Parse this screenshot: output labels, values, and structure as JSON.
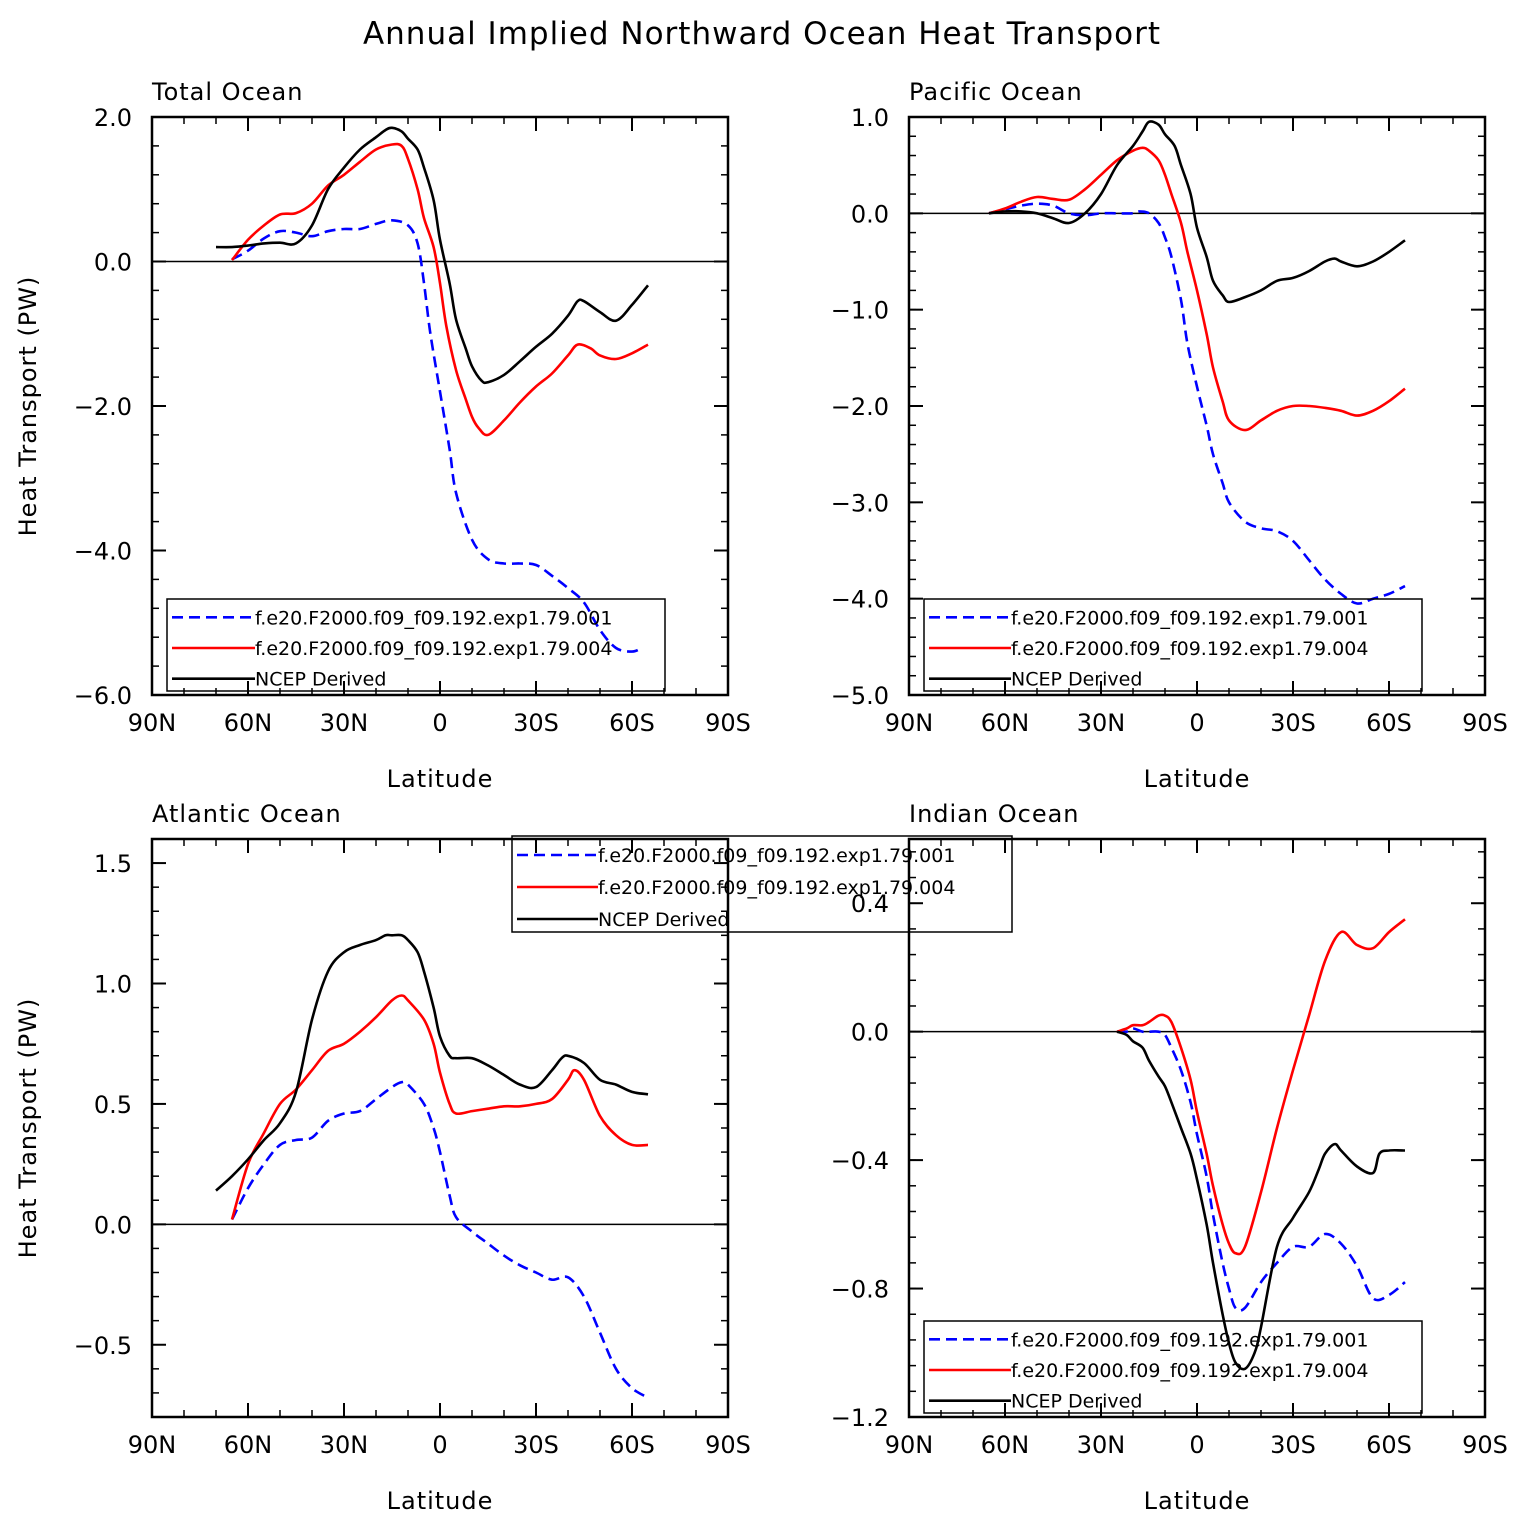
{
  "title": "Annual Implied Northward Ocean Heat Transport",
  "colors": {
    "exp001": "#0000ff",
    "exp004": "#ff0000",
    "ncep": "#000000"
  },
  "chart_data": [
    {
      "type": "line",
      "title": "Total Ocean",
      "xlabel": "Latitude",
      "ylabel": "Heat Transport (PW)",
      "xlim": [
        90,
        -90
      ],
      "ylim": [
        -6.0,
        2.0
      ],
      "xticks": [
        90,
        60,
        30,
        0,
        -30,
        -60,
        -90
      ],
      "xtick_labels": [
        "90N",
        "60N",
        "30N",
        "0",
        "30S",
        "60S",
        "90S"
      ],
      "yticks": [
        2.0,
        0.0,
        -2.0,
        -4.0,
        -6.0
      ],
      "ytick_labels": [
        "2.0",
        "0.0",
        "−2.0",
        "−4.0",
        "−6.0"
      ],
      "zero_line": true,
      "legend_position": "bottom-left",
      "series": [
        {
          "name": "f.e20.F2000.f09_f09.192.exp1.79.001",
          "style": "dashed",
          "color": "#0000ff",
          "x": [
            65,
            60,
            55,
            50,
            45,
            40,
            35,
            30,
            25,
            20,
            15,
            10,
            7,
            5,
            3,
            0,
            -3,
            -5,
            -10,
            -15,
            -20,
            -25,
            -30,
            -35,
            -40,
            -45,
            -50,
            -55,
            -60,
            -63
          ],
          "y": [
            0.03,
            0.15,
            0.32,
            0.42,
            0.4,
            0.35,
            0.42,
            0.45,
            0.45,
            0.52,
            0.57,
            0.5,
            0.25,
            -0.3,
            -1.0,
            -1.8,
            -2.6,
            -3.2,
            -3.85,
            -4.12,
            -4.18,
            -4.18,
            -4.2,
            -4.35,
            -4.52,
            -4.72,
            -5.1,
            -5.35,
            -5.4,
            -5.35
          ]
        },
        {
          "name": "f.e20.F2000.f09_f09.192.exp1.79.004",
          "style": "solid",
          "color": "#ff0000",
          "x": [
            65,
            60,
            55,
            50,
            45,
            40,
            35,
            30,
            25,
            20,
            15,
            12,
            10,
            7,
            5,
            2,
            0,
            -2,
            -5,
            -8,
            -10,
            -12,
            -15,
            -20,
            -25,
            -30,
            -35,
            -40,
            -43,
            -47,
            -50,
            -55,
            -60,
            -65
          ],
          "y": [
            0.02,
            0.3,
            0.5,
            0.65,
            0.67,
            0.8,
            1.05,
            1.2,
            1.38,
            1.55,
            1.62,
            1.6,
            1.42,
            1.0,
            0.6,
            0.2,
            -0.3,
            -0.9,
            -1.5,
            -1.9,
            -2.15,
            -2.3,
            -2.4,
            -2.2,
            -1.95,
            -1.73,
            -1.55,
            -1.3,
            -1.15,
            -1.2,
            -1.3,
            -1.35,
            -1.27,
            -1.15
          ]
        },
        {
          "name": "NCEP Derived",
          "style": "solid",
          "color": "#000000",
          "x": [
            70,
            65,
            60,
            55,
            50,
            45,
            40,
            35,
            30,
            25,
            20,
            17,
            15,
            12,
            10,
            7,
            5,
            2,
            0,
            -3,
            -5,
            -8,
            -10,
            -13,
            -15,
            -20,
            -25,
            -30,
            -35,
            -40,
            -43,
            -45,
            -50,
            -55,
            -60,
            -65
          ],
          "y": [
            0.2,
            0.2,
            0.22,
            0.25,
            0.26,
            0.25,
            0.5,
            1.0,
            1.3,
            1.55,
            1.72,
            1.82,
            1.85,
            1.8,
            1.7,
            1.55,
            1.3,
            0.85,
            0.3,
            -0.3,
            -0.8,
            -1.2,
            -1.45,
            -1.65,
            -1.67,
            -1.57,
            -1.38,
            -1.18,
            -1.0,
            -0.75,
            -0.55,
            -0.55,
            -0.7,
            -0.82,
            -0.6,
            -0.33
          ]
        }
      ]
    },
    {
      "type": "line",
      "title": "Pacific Ocean",
      "xlabel": "Latitude",
      "ylabel": "",
      "xlim": [
        90,
        -90
      ],
      "ylim": [
        -5.0,
        1.0
      ],
      "xticks": [
        90,
        60,
        30,
        0,
        -30,
        -60,
        -90
      ],
      "xtick_labels": [
        "90N",
        "60N",
        "30N",
        "0",
        "30S",
        "60S",
        "90S"
      ],
      "yticks": [
        1.0,
        0.0,
        -1.0,
        -2.0,
        -3.0,
        -4.0,
        -5.0
      ],
      "ytick_labels": [
        "1.0",
        "0.0",
        "−1.0",
        "−2.0",
        "−3.0",
        "−4.0",
        "−5.0"
      ],
      "zero_line": true,
      "legend_position": "bottom-left",
      "series": [
        {
          "name": "f.e20.F2000.f09_f09.192.exp1.79.001",
          "style": "dashed",
          "color": "#0000ff",
          "x": [
            65,
            60,
            55,
            50,
            45,
            40,
            35,
            30,
            25,
            20,
            18,
            15,
            12,
            10,
            8,
            5,
            3,
            0,
            -3,
            -5,
            -8,
            -10,
            -15,
            -20,
            -25,
            -30,
            -35,
            -40,
            -45,
            -50,
            -55,
            -60,
            -65
          ],
          "y": [
            0.0,
            0.04,
            0.08,
            0.1,
            0.08,
            0.0,
            -0.02,
            0.0,
            0.0,
            0.0,
            0.02,
            0.0,
            -0.1,
            -0.25,
            -0.45,
            -0.9,
            -1.35,
            -1.8,
            -2.2,
            -2.5,
            -2.8,
            -3.0,
            -3.2,
            -3.27,
            -3.3,
            -3.4,
            -3.6,
            -3.8,
            -3.95,
            -4.05,
            -4.0,
            -3.95,
            -3.87
          ]
        },
        {
          "name": "f.e20.F2000.f09_f09.192.exp1.79.004",
          "style": "solid",
          "color": "#ff0000",
          "x": [
            65,
            60,
            55,
            50,
            45,
            40,
            35,
            30,
            25,
            20,
            17,
            15,
            12,
            10,
            8,
            5,
            3,
            0,
            -3,
            -5,
            -8,
            -10,
            -15,
            -20,
            -25,
            -30,
            -35,
            -40,
            -45,
            -50,
            -55,
            -60,
            -65
          ],
          "y": [
            0.0,
            0.05,
            0.12,
            0.17,
            0.15,
            0.14,
            0.25,
            0.4,
            0.55,
            0.65,
            0.68,
            0.65,
            0.55,
            0.4,
            0.2,
            -0.1,
            -0.4,
            -0.8,
            -1.25,
            -1.6,
            -1.95,
            -2.15,
            -2.25,
            -2.15,
            -2.05,
            -2.0,
            -2.0,
            -2.02,
            -2.05,
            -2.1,
            -2.05,
            -1.95,
            -1.82
          ]
        },
        {
          "name": "NCEP Derived",
          "style": "solid",
          "color": "#000000",
          "x": [
            65,
            60,
            55,
            50,
            45,
            40,
            35,
            30,
            25,
            20,
            17,
            15,
            12,
            10,
            7,
            5,
            2,
            0,
            -3,
            -5,
            -8,
            -10,
            -15,
            -20,
            -25,
            -30,
            -35,
            -40,
            -43,
            -45,
            -50,
            -55,
            -60,
            -65
          ],
          "y": [
            0.0,
            0.02,
            0.02,
            0.0,
            -0.05,
            -0.1,
            0.0,
            0.2,
            0.5,
            0.7,
            0.85,
            0.95,
            0.92,
            0.82,
            0.7,
            0.5,
            0.2,
            -0.15,
            -0.45,
            -0.7,
            -0.85,
            -0.92,
            -0.87,
            -0.8,
            -0.7,
            -0.67,
            -0.6,
            -0.5,
            -0.47,
            -0.5,
            -0.55,
            -0.5,
            -0.4,
            -0.28
          ]
        }
      ]
    },
    {
      "type": "line",
      "title": "Atlantic Ocean",
      "xlabel": "Latitude",
      "ylabel": "Heat Transport (PW)",
      "xlim": [
        90,
        -90
      ],
      "ylim": [
        -0.8,
        1.6
      ],
      "xticks": [
        90,
        60,
        30,
        0,
        -30,
        -60,
        -90
      ],
      "xtick_labels": [
        "90N",
        "60N",
        "30N",
        "0",
        "30S",
        "60S",
        "90S"
      ],
      "yticks": [
        1.5,
        1.0,
        0.5,
        0.0,
        -0.5
      ],
      "ytick_labels": [
        "1.5",
        "1.0",
        "0.5",
        "0.0",
        "−0.5"
      ],
      "zero_line": true,
      "legend_position": "top-center",
      "series": [
        {
          "name": "f.e20.F2000.f09_f09.192.exp1.79.001",
          "style": "dashed",
          "color": "#0000ff",
          "x": [
            65,
            60,
            55,
            50,
            45,
            40,
            35,
            30,
            25,
            20,
            15,
            12,
            10,
            5,
            2,
            0,
            -3,
            -5,
            -10,
            -15,
            -20,
            -25,
            -30,
            -35,
            -40,
            -45,
            -50,
            -55,
            -60,
            -65
          ],
          "y": [
            0.02,
            0.15,
            0.25,
            0.33,
            0.35,
            0.36,
            0.43,
            0.46,
            0.47,
            0.52,
            0.57,
            0.59,
            0.58,
            0.5,
            0.4,
            0.3,
            0.12,
            0.03,
            -0.03,
            -0.08,
            -0.13,
            -0.17,
            -0.2,
            -0.23,
            -0.22,
            -0.3,
            -0.45,
            -0.6,
            -0.68,
            -0.72
          ]
        },
        {
          "name": "f.e20.F2000.f09_f09.192.exp1.79.004",
          "style": "solid",
          "color": "#ff0000",
          "x": [
            65,
            60,
            55,
            50,
            45,
            40,
            35,
            30,
            25,
            20,
            15,
            12,
            10,
            5,
            2,
            0,
            -3,
            -5,
            -10,
            -15,
            -20,
            -25,
            -30,
            -35,
            -40,
            -42,
            -45,
            -50,
            -55,
            -60,
            -65
          ],
          "y": [
            0.02,
            0.25,
            0.38,
            0.5,
            0.56,
            0.64,
            0.72,
            0.75,
            0.8,
            0.86,
            0.93,
            0.95,
            0.93,
            0.85,
            0.75,
            0.63,
            0.5,
            0.46,
            0.47,
            0.48,
            0.49,
            0.49,
            0.5,
            0.52,
            0.6,
            0.64,
            0.6,
            0.45,
            0.37,
            0.33,
            0.33
          ]
        },
        {
          "name": "NCEP Derived",
          "style": "solid",
          "color": "#000000",
          "x": [
            70,
            65,
            60,
            55,
            50,
            45,
            40,
            35,
            30,
            25,
            20,
            17,
            15,
            12,
            10,
            7,
            5,
            2,
            0,
            -3,
            -5,
            -10,
            -15,
            -20,
            -25,
            -30,
            -35,
            -38,
            -40,
            -45,
            -50,
            -55,
            -60,
            -65
          ],
          "y": [
            0.14,
            0.2,
            0.27,
            0.35,
            0.42,
            0.55,
            0.85,
            1.05,
            1.13,
            1.16,
            1.18,
            1.2,
            1.2,
            1.2,
            1.18,
            1.13,
            1.05,
            0.9,
            0.78,
            0.7,
            0.69,
            0.69,
            0.66,
            0.62,
            0.58,
            0.57,
            0.64,
            0.69,
            0.7,
            0.67,
            0.6,
            0.58,
            0.55,
            0.54
          ]
        }
      ]
    },
    {
      "type": "line",
      "title": "Indian Ocean",
      "xlabel": "Latitude",
      "ylabel": "",
      "xlim": [
        90,
        -90
      ],
      "ylim": [
        -1.2,
        0.6
      ],
      "xticks": [
        90,
        60,
        30,
        0,
        -30,
        -60,
        -90
      ],
      "xtick_labels": [
        "90N",
        "60N",
        "30N",
        "0",
        "30S",
        "60S",
        "90S"
      ],
      "yticks": [
        0.4,
        0.0,
        -0.4,
        -0.8,
        -1.2
      ],
      "ytick_labels": [
        "0.4",
        "0.0",
        "−0.4",
        "−0.8",
        "−1.2"
      ],
      "zero_line": true,
      "legend_position": "bottom-left",
      "series": [
        {
          "name": "f.e20.F2000.f09_f09.192.exp1.79.001",
          "style": "dashed",
          "color": "#0000ff",
          "x": [
            25,
            22,
            20,
            17,
            15,
            12,
            10,
            8,
            5,
            2,
            0,
            -3,
            -5,
            -8,
            -10,
            -12,
            -15,
            -20,
            -25,
            -30,
            -35,
            -40,
            -45,
            -50,
            -55,
            -60,
            -65
          ],
          "y": [
            0.0,
            0.0,
            0.01,
            0.0,
            0.0,
            0.0,
            -0.01,
            -0.05,
            -0.12,
            -0.22,
            -0.32,
            -0.45,
            -0.57,
            -0.72,
            -0.8,
            -0.86,
            -0.86,
            -0.78,
            -0.72,
            -0.67,
            -0.67,
            -0.63,
            -0.66,
            -0.73,
            -0.83,
            -0.82,
            -0.78
          ]
        },
        {
          "name": "f.e20.F2000.f09_f09.192.exp1.79.004",
          "style": "solid",
          "color": "#ff0000",
          "x": [
            25,
            22,
            20,
            17,
            15,
            12,
            10,
            8,
            5,
            2,
            0,
            -3,
            -5,
            -8,
            -10,
            -12,
            -15,
            -20,
            -25,
            -30,
            -35,
            -40,
            -45,
            -50,
            -55,
            -60,
            -65
          ],
          "y": [
            0.0,
            0.01,
            0.02,
            0.02,
            0.03,
            0.05,
            0.05,
            0.03,
            -0.05,
            -0.15,
            -0.25,
            -0.38,
            -0.48,
            -0.6,
            -0.66,
            -0.69,
            -0.67,
            -0.5,
            -0.3,
            -0.12,
            0.05,
            0.22,
            0.31,
            0.27,
            0.26,
            0.31,
            0.35
          ]
        },
        {
          "name": "NCEP Derived",
          "style": "solid",
          "color": "#000000",
          "x": [
            25,
            22,
            20,
            17,
            15,
            12,
            10,
            8,
            5,
            2,
            0,
            -3,
            -5,
            -8,
            -10,
            -12,
            -15,
            -18,
            -20,
            -25,
            -30,
            -35,
            -38,
            -40,
            -43,
            -45,
            -50,
            -55,
            -57,
            -60,
            -65
          ],
          "y": [
            0.0,
            -0.01,
            -0.03,
            -0.05,
            -0.09,
            -0.14,
            -0.17,
            -0.22,
            -0.3,
            -0.38,
            -0.46,
            -0.6,
            -0.72,
            -0.88,
            -0.97,
            -1.03,
            -1.05,
            -1.0,
            -0.92,
            -0.67,
            -0.58,
            -0.5,
            -0.43,
            -0.38,
            -0.35,
            -0.37,
            -0.42,
            -0.44,
            -0.38,
            -0.37,
            -0.37
          ]
        }
      ]
    }
  ]
}
